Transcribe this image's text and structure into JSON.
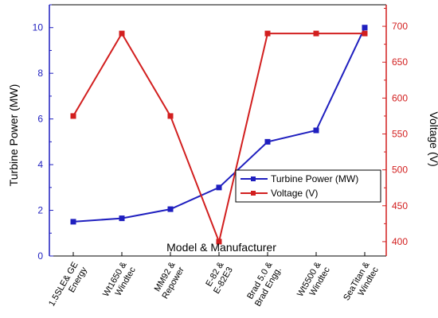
{
  "chart_data": {
    "type": "line",
    "xlabel": "Model & Manufacturer",
    "categories": [
      [
        "1.5SLE& GE",
        "Energy"
      ],
      [
        "Wt1650 &",
        "Windtec"
      ],
      [
        "MM92 &",
        "Repower"
      ],
      [
        "E-82 &",
        "E-82E3"
      ],
      [
        "Brad 5.0 &",
        "Brad Engg."
      ],
      [
        "Wt5500 &",
        "Windtec"
      ],
      [
        "SeaTitan &",
        "Windtec"
      ]
    ],
    "left_axis": {
      "label": "Turbine Power (MW)",
      "range": [
        0,
        11
      ],
      "ticks": [
        0,
        2,
        4,
        6,
        8,
        10
      ],
      "color": "#1f1fbf"
    },
    "right_axis": {
      "label": "Voltage (V)",
      "range": [
        380,
        730
      ],
      "ticks": [
        400,
        450,
        500,
        550,
        600,
        650,
        700
      ],
      "color": "#d21f1f"
    },
    "series": [
      {
        "name": "Turbine Power (MW)",
        "axis": "left",
        "color": "#1f1fbf",
        "values": [
          1.5,
          1.65,
          2.05,
          3.0,
          5.0,
          5.5,
          10.0
        ]
      },
      {
        "name": "Voltage (V)",
        "axis": "right",
        "color": "#d21f1f",
        "values": [
          575,
          690,
          575,
          400,
          690,
          690,
          690
        ]
      }
    ],
    "legend": {
      "position": "center-right"
    }
  }
}
